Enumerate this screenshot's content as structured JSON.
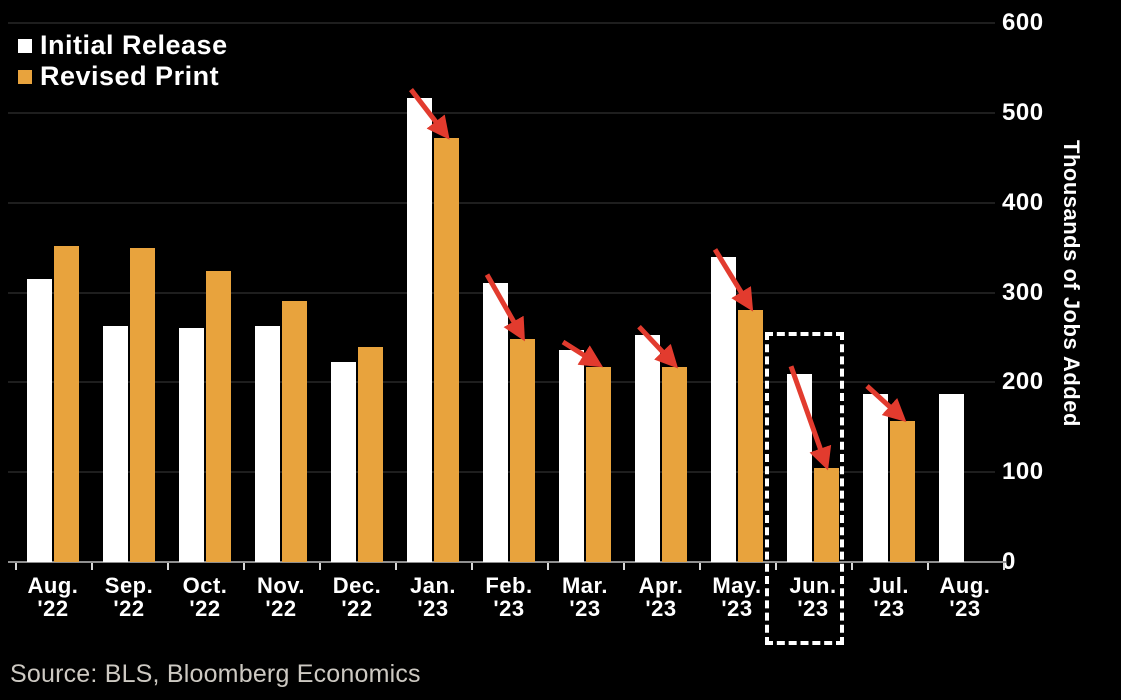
{
  "chart_data": {
    "type": "bar",
    "categories": [
      "Aug. '22",
      "Sep. '22",
      "Oct. '22",
      "Nov. '22",
      "Dec. '22",
      "Jan. '23",
      "Feb. '23",
      "Mar. '23",
      "Apr. '23",
      "May. '23",
      "Jun. '23",
      "Jul. '23",
      "Aug. '23"
    ],
    "series": [
      {
        "name": "Initial Release",
        "color": "#FFFFFF",
        "values": [
          315,
          263,
          261,
          263,
          223,
          517,
          311,
          236,
          253,
          339,
          209,
          187,
          187
        ]
      },
      {
        "name": "Revised Print",
        "color": "#E8A33D",
        "values": [
          352,
          350,
          324,
          290,
          239,
          472,
          248,
          217,
          217,
          281,
          105,
          157,
          null
        ]
      }
    ],
    "revision_arrows": [
      false,
      false,
      false,
      false,
      false,
      true,
      true,
      true,
      true,
      true,
      true,
      true,
      false
    ],
    "arrow_color": "#E23B2E",
    "highlighted_category": "Jun. '23",
    "ylabel": "Thousands of Jobs Added",
    "ylim": [
      0,
      600
    ],
    "yticks": [
      0,
      100,
      200,
      300,
      400,
      500,
      600
    ],
    "grid": true,
    "legend_position": "top-left"
  },
  "source": "Source: BLS, Bloomberg Economics",
  "colors": {
    "background": "#000000",
    "grid": "#1E1E1E",
    "axis": "#8F8F8F",
    "tick": "#D8D8D8",
    "text": "#FFFFFF",
    "source_text": "#CDC9C2",
    "highlight_box": "#FFFFFF"
  }
}
